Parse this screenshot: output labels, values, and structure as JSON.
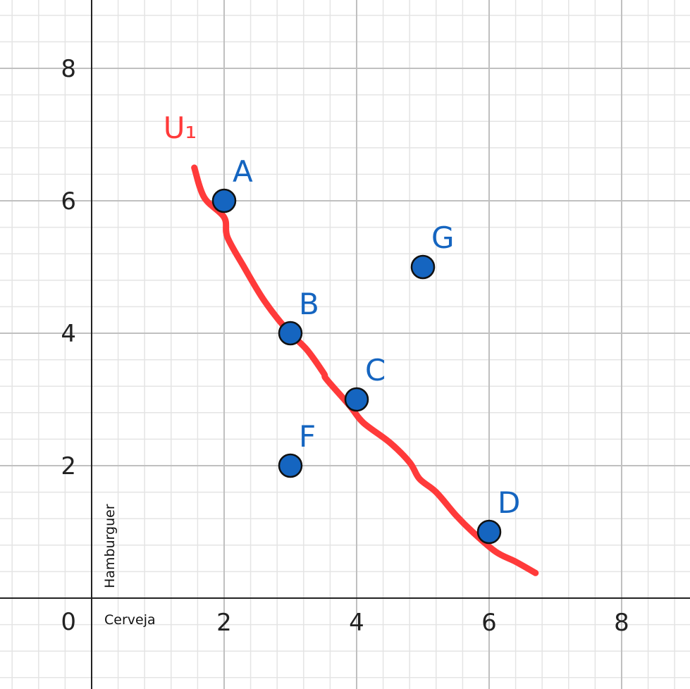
{
  "chart_data": {
    "type": "scatter",
    "title": "",
    "xlabel": "Cerveja",
    "ylabel": "Hamburguer",
    "xlim": [
      -1.4,
      9.0
    ],
    "ylim": [
      -1.4,
      9.0
    ],
    "grid": true,
    "major_step": 2,
    "minor_step": 0.4,
    "x_ticks": [
      {
        "value": 2,
        "label": "2"
      },
      {
        "value": 4,
        "label": "4"
      },
      {
        "value": 6,
        "label": "6"
      },
      {
        "value": 8,
        "label": "8"
      }
    ],
    "y_ticks": [
      {
        "value": 2,
        "label": "2"
      },
      {
        "value": 4,
        "label": "4"
      },
      {
        "value": 6,
        "label": "6"
      },
      {
        "value": 8,
        "label": "8"
      }
    ],
    "origin_label": "0",
    "points": [
      {
        "label": "A",
        "x": 2,
        "y": 6
      },
      {
        "label": "B",
        "x": 3,
        "y": 4
      },
      {
        "label": "C",
        "x": 4,
        "y": 3
      },
      {
        "label": "D",
        "x": 6,
        "y": 1
      },
      {
        "label": "F",
        "x": 3,
        "y": 2
      },
      {
        "label": "G",
        "x": 5,
        "y": 5
      }
    ],
    "point_color": "#1565c0",
    "curve": {
      "label": "U₁",
      "color": "#ff3a3a",
      "points": [
        [
          1.55,
          6.5
        ],
        [
          1.7,
          6.05
        ],
        [
          2.0,
          5.75
        ],
        [
          2.05,
          5.45
        ],
        [
          2.3,
          5.0
        ],
        [
          2.6,
          4.5
        ],
        [
          2.95,
          4.05
        ],
        [
          3.25,
          3.75
        ],
        [
          3.5,
          3.4
        ],
        [
          3.55,
          3.3
        ],
        [
          3.9,
          2.9
        ],
        [
          4.1,
          2.65
        ],
        [
          4.5,
          2.35
        ],
        [
          4.8,
          2.05
        ],
        [
          4.95,
          1.8
        ],
        [
          5.2,
          1.6
        ],
        [
          5.5,
          1.25
        ],
        [
          5.75,
          1.0
        ],
        [
          6.1,
          0.7
        ],
        [
          6.4,
          0.55
        ],
        [
          6.7,
          0.38
        ]
      ]
    },
    "colors": {
      "minor_grid": "#e4e4e4",
      "major_grid": "#c0c0c0",
      "axis": "#222222"
    }
  }
}
